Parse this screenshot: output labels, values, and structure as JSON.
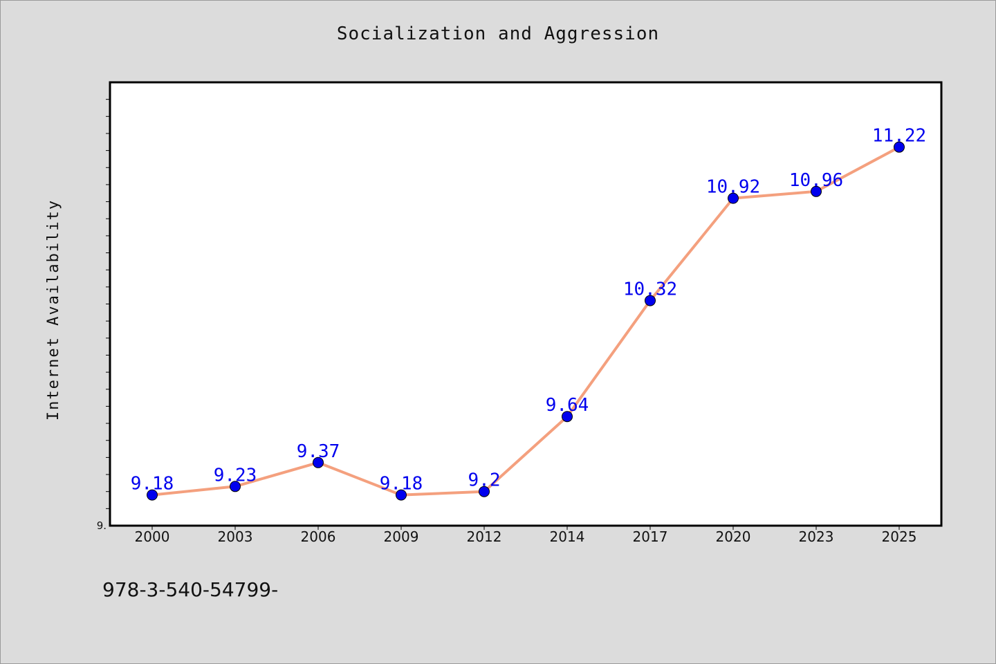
{
  "chart_data": {
    "type": "line",
    "title": "Socialization and Aggression",
    "xlabel": "",
    "ylabel": "Internet Availability",
    "categories": [
      "2000",
      "2003",
      "2006",
      "2009",
      "2012",
      "2014",
      "2017",
      "2020",
      "2023",
      "2025"
    ],
    "series": [
      {
        "values": [
          9.18,
          9.23,
          9.37,
          9.18,
          9.2,
          9.64,
          10.32,
          10.92,
          10.96,
          11.22
        ],
        "labels": [
          "9.18",
          "9.23",
          "9.37",
          "9.18",
          "9.2",
          "9.64",
          "10.32",
          "10.92",
          "10.96",
          "11.22"
        ],
        "line_color": "#f4a07e",
        "marker_color": "#0000ee",
        "label_color": "#0000ee"
      }
    ],
    "ylim": [
      9.0,
      11.6
    ],
    "y_tick_label": "9.",
    "grid": false,
    "legend": "none"
  },
  "footer": {
    "isbn_text": "978-3-540-54799-"
  },
  "colors": {
    "background": "#dcdcdc",
    "plot_background": "#ffffff",
    "axis": "#000000"
  }
}
